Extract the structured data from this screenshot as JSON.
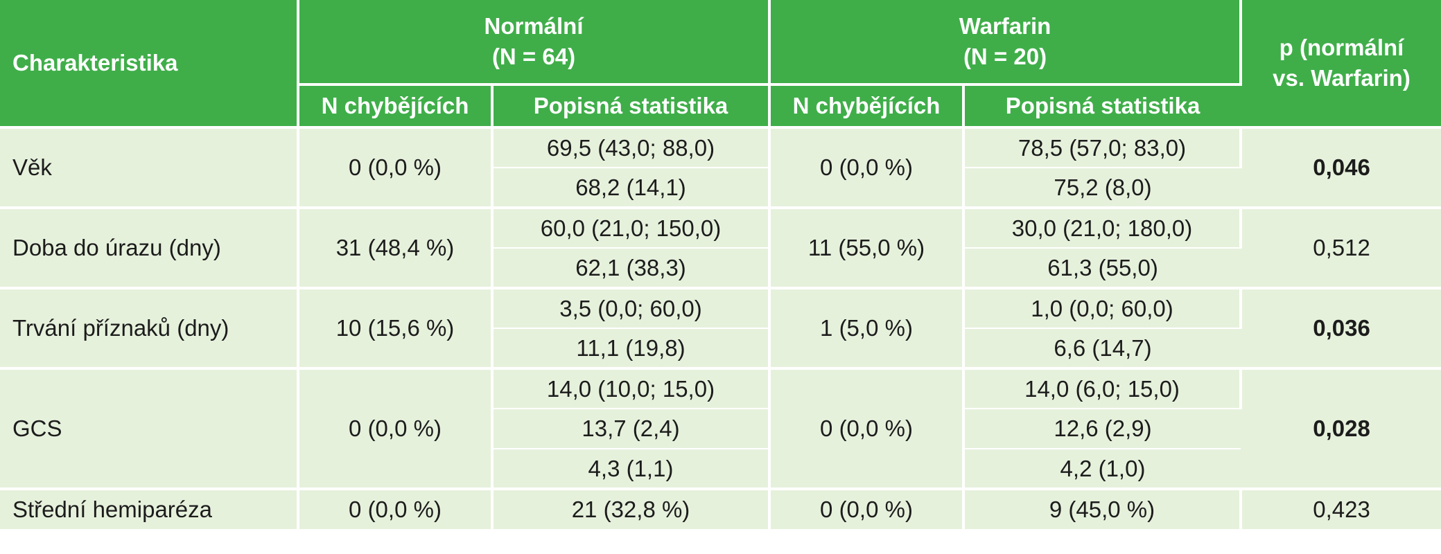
{
  "header": {
    "characteristic": "Charakteristika",
    "group1": {
      "name": "Normální",
      "n": "(N = 64)"
    },
    "group2": {
      "name": "Warfarin",
      "n": "(N = 20)"
    },
    "pvalue_line1": "p (normální",
    "pvalue_line2": "vs. Warfarin)",
    "missing": "N chybějících",
    "descriptive": "Popisná statistika"
  },
  "rows": [
    {
      "label": "Věk",
      "missing1": "0 (0,0 %)",
      "stats1": [
        "69,5 (43,0; 88,0)",
        "68,2 (14,1)"
      ],
      "missing2": "0 (0,0 %)",
      "stats2": [
        "78,5 (57,0; 83,0)",
        "75,2 (8,0)"
      ],
      "p": "0,046",
      "significant": true
    },
    {
      "label": "Doba do úrazu (dny)",
      "missing1": "31 (48,4 %)",
      "stats1": [
        "60,0 (21,0; 150,0)",
        "62,1 (38,3)"
      ],
      "missing2": "11 (55,0 %)",
      "stats2": [
        "30,0 (21,0; 180,0)",
        "61,3 (55,0)"
      ],
      "p": "0,512",
      "significant": false
    },
    {
      "label": "Trvání příznaků (dny)",
      "missing1": "10 (15,6 %)",
      "stats1": [
        "3,5 (0,0; 60,0)",
        "11,1 (19,8)"
      ],
      "missing2": "1 (5,0 %)",
      "stats2": [
        "1,0 (0,0; 60,0)",
        "6,6 (14,7)"
      ],
      "p": "0,036",
      "significant": true
    },
    {
      "label": "GCS",
      "missing1": "0 (0,0 %)",
      "stats1": [
        "14,0 (10,0; 15,0)",
        "13,7 (2,4)",
        "4,3 (1,1)"
      ],
      "missing2": "0 (0,0 %)",
      "stats2": [
        "14,0 (6,0; 15,0)",
        "12,6 (2,9)",
        "4,2 (1,0)"
      ],
      "p": "0,028",
      "significant": true
    },
    {
      "label": "Střední hemiparéza",
      "missing1": "0 (0,0 %)",
      "stats1": [
        "21 (32,8 %)"
      ],
      "missing2": "0 (0,0 %)",
      "stats2": [
        "9 (45,0 %)"
      ],
      "p": "0,423",
      "significant": false
    }
  ]
}
